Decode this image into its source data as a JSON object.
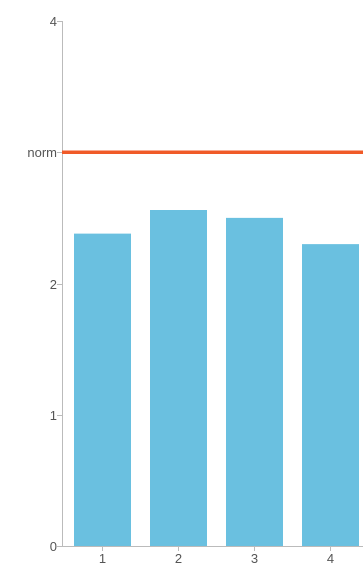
{
  "chart_data": {
    "type": "bar",
    "categories": [
      "1",
      "2",
      "3",
      "4"
    ],
    "values": [
      2.38,
      2.56,
      2.5,
      2.3
    ],
    "ylim": [
      0,
      4
    ],
    "yticks": [
      {
        "value": 0,
        "label": "0"
      },
      {
        "value": 1,
        "label": "1"
      },
      {
        "value": 2,
        "label": "2"
      },
      {
        "value": 3,
        "label": "norm"
      },
      {
        "value": 4,
        "label": "4"
      }
    ],
    "reference_line": {
      "value": 3,
      "label": "norm",
      "color": "#f05a28"
    },
    "bar_color": "#6ac0e0",
    "grid": false,
    "title": "",
    "xlabel": "",
    "ylabel": ""
  }
}
